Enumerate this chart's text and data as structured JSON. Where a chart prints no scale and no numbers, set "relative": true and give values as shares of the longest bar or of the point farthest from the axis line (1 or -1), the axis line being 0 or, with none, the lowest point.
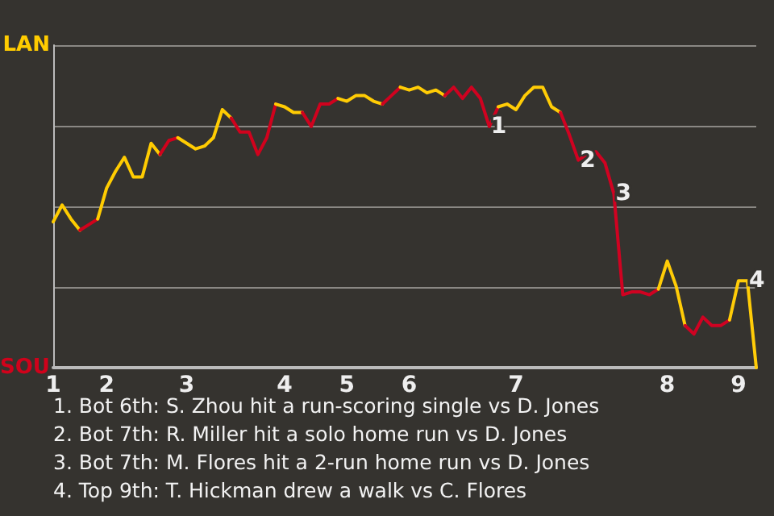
{
  "chart_data": {
    "type": "line",
    "relative": true,
    "categories": [
      "1",
      null,
      null,
      null,
      null,
      null,
      "2",
      null,
      null,
      null,
      null,
      null,
      null,
      null,
      null,
      "3",
      null,
      null,
      null,
      null,
      null,
      null,
      null,
      null,
      null,
      null,
      "4",
      null,
      null,
      null,
      null,
      null,
      null,
      "5",
      null,
      null,
      null,
      null,
      null,
      null,
      "6",
      null,
      null,
      null,
      null,
      null,
      null,
      null,
      null,
      null,
      null,
      null,
      "7",
      null,
      null,
      null,
      null,
      null,
      null,
      null,
      null,
      null,
      null,
      null,
      null,
      null,
      null,
      null,
      null,
      "8",
      null,
      null,
      null,
      null,
      null,
      null,
      null,
      "9",
      null,
      null
    ],
    "series": [
      {
        "name": "LAN",
        "color": "#ffcc00",
        "values": [
          0.52,
          0.58,
          0.53,
          0.49,
          null,
          null,
          null,
          null,
          null,
          null,
          null,
          null,
          null,
          null,
          null,
          null,
          null,
          null,
          null,
          null,
          null,
          null,
          null,
          null,
          null,
          null,
          null,
          null,
          null,
          null,
          null,
          null,
          null,
          null,
          null,
          null,
          null,
          null,
          null,
          null,
          null,
          null,
          null,
          null,
          null,
          null,
          null,
          null,
          null,
          null,
          null,
          null,
          null,
          null,
          null,
          null,
          null,
          null,
          null,
          null,
          null,
          null,
          null,
          null,
          null,
          null,
          null,
          null,
          null,
          null,
          null,
          null,
          null,
          null,
          null,
          null,
          null,
          null,
          null,
          null
        ]
      },
      {
        "name": "SOU",
        "color": "#d0021b",
        "values": [
          null,
          null,
          null,
          0.49,
          0.51,
          0.53,
          null,
          null,
          null,
          null,
          null,
          null,
          null,
          null,
          null,
          null,
          null,
          null,
          null,
          null,
          null,
          null,
          null,
          null,
          null,
          null,
          null,
          null,
          null,
          null,
          null,
          null,
          null,
          null,
          null,
          null,
          null,
          null,
          null,
          null,
          null,
          null,
          null,
          null,
          null,
          null,
          null,
          null,
          null,
          null,
          null,
          null,
          null,
          null,
          null,
          null,
          null,
          null,
          null,
          null,
          null,
          null,
          null,
          null,
          null,
          null,
          null,
          null,
          null,
          null,
          null,
          null,
          null,
          null,
          null,
          null,
          null,
          null,
          null,
          null
        ]
      },
      {
        "color": "#ffcc01",
        "values": [
          null,
          null,
          null,
          null,
          null,
          0.53,
          0.64,
          0.7,
          0.75,
          0.68,
          0.68,
          0.8,
          0.76,
          null,
          null,
          null,
          null,
          null,
          null,
          null,
          null,
          null,
          null,
          null,
          null,
          null,
          null,
          null,
          null,
          null,
          null,
          null,
          null,
          null,
          null,
          null,
          null,
          null,
          null,
          null,
          null,
          null,
          null,
          null,
          null,
          null,
          null,
          null,
          null,
          null,
          null,
          null,
          null,
          null,
          null,
          null,
          null,
          null,
          null,
          null,
          null,
          null,
          null,
          null,
          null,
          null,
          null,
          null,
          null,
          null,
          null,
          null,
          null,
          null,
          null,
          null,
          null,
          null,
          null,
          null
        ]
      },
      {
        "color": "#d0021c",
        "values": [
          null,
          null,
          null,
          null,
          null,
          null,
          null,
          null,
          null,
          null,
          null,
          null,
          0.76,
          0.81,
          0.82,
          null,
          null,
          null,
          null,
          null,
          null,
          null,
          null,
          null,
          null,
          null,
          null,
          null,
          null,
          null,
          null,
          null,
          null,
          null,
          null,
          null,
          null,
          null,
          null,
          null,
          null,
          null,
          null,
          null,
          null,
          null,
          null,
          null,
          null,
          null,
          null,
          null,
          null,
          null,
          null,
          null,
          null,
          null,
          null,
          null,
          null,
          null,
          null,
          null,
          null,
          null,
          null,
          null,
          null,
          null,
          null,
          null,
          null,
          null,
          null,
          null,
          null,
          null,
          null,
          null
        ]
      },
      {
        "color": "#ffcc02",
        "values": [
          null,
          null,
          null,
          null,
          null,
          null,
          null,
          null,
          null,
          null,
          null,
          null,
          null,
          null,
          0.82,
          0.8,
          0.78,
          0.79,
          0.82,
          0.92,
          0.89,
          null,
          null,
          null,
          null,
          null,
          null,
          null,
          null,
          null,
          null,
          null,
          null,
          null,
          null,
          null,
          null,
          null,
          null,
          null,
          null,
          null,
          null,
          null,
          null,
          null,
          null,
          null,
          null,
          null,
          null,
          null,
          null,
          null,
          null,
          null,
          null,
          null,
          null,
          null,
          null,
          null,
          null,
          null,
          null,
          null,
          null,
          null,
          null,
          null,
          null,
          null,
          null,
          null,
          null,
          null,
          null,
          null,
          null,
          null
        ]
      },
      {
        "color": "#d0021d",
        "values": [
          null,
          null,
          null,
          null,
          null,
          null,
          null,
          null,
          null,
          null,
          null,
          null,
          null,
          null,
          null,
          null,
          null,
          null,
          null,
          null,
          0.89,
          0.84,
          0.84,
          0.76,
          0.82,
          0.94,
          null,
          null,
          null,
          null,
          null,
          null,
          null,
          null,
          null,
          null,
          null,
          null,
          null,
          null,
          null,
          null,
          null,
          null,
          null,
          null,
          null,
          null,
          null,
          null,
          null,
          null,
          null,
          null,
          null,
          null,
          null,
          null,
          null,
          null,
          null,
          null,
          null,
          null,
          null,
          null,
          null,
          null,
          null,
          null,
          null,
          null,
          null,
          null,
          null,
          null,
          null,
          null,
          null,
          null
        ]
      },
      {
        "color": "#ffcc03",
        "values": [
          null,
          null,
          null,
          null,
          null,
          null,
          null,
          null,
          null,
          null,
          null,
          null,
          null,
          null,
          null,
          null,
          null,
          null,
          null,
          null,
          null,
          null,
          null,
          null,
          null,
          0.94,
          0.93,
          0.91,
          0.91,
          null,
          null,
          null,
          null,
          null,
          null,
          null,
          null,
          null,
          null,
          null,
          null,
          null,
          null,
          null,
          null,
          null,
          null,
          null,
          null,
          null,
          null,
          null,
          null,
          null,
          null,
          null,
          null,
          null,
          null,
          null,
          null,
          null,
          null,
          null,
          null,
          null,
          null,
          null,
          null,
          null,
          null,
          null,
          null,
          null,
          null,
          null,
          null,
          null,
          null,
          null
        ]
      },
      {
        "color": "#d0021e",
        "values": [
          null,
          null,
          null,
          null,
          null,
          null,
          null,
          null,
          null,
          null,
          null,
          null,
          null,
          null,
          null,
          null,
          null,
          null,
          null,
          null,
          null,
          null,
          null,
          null,
          null,
          null,
          null,
          null,
          0.91,
          0.86,
          0.94,
          0.94,
          0.96,
          null,
          null,
          null,
          null,
          null,
          null,
          null,
          null,
          null,
          null,
          null,
          null,
          null,
          null,
          null,
          null,
          null,
          null,
          null,
          null,
          null,
          null,
          null,
          null,
          null,
          null,
          null,
          null,
          null,
          null,
          null,
          null,
          null,
          null,
          null,
          null,
          null,
          null,
          null,
          null,
          null,
          null,
          null,
          null,
          null,
          null,
          null
        ]
      },
      {
        "color": "#ffcc04",
        "values": [
          null,
          null,
          null,
          null,
          null,
          null,
          null,
          null,
          null,
          null,
          null,
          null,
          null,
          null,
          null,
          null,
          null,
          null,
          null,
          null,
          null,
          null,
          null,
          null,
          null,
          null,
          null,
          null,
          null,
          null,
          null,
          null,
          0.96,
          0.95,
          0.97,
          0.97,
          0.95,
          0.94,
          null,
          null,
          null,
          null,
          null,
          null,
          null,
          null,
          null,
          null,
          null,
          null,
          null,
          null,
          null,
          null,
          null,
          null,
          null,
          null,
          null,
          null,
          null,
          null,
          null,
          null,
          null,
          null,
          null,
          null,
          null,
          null,
          null,
          null,
          null,
          null,
          null,
          null,
          null,
          null,
          null,
          null
        ]
      },
      {
        "color": "#d0021f",
        "values": [
          null,
          null,
          null,
          null,
          null,
          null,
          null,
          null,
          null,
          null,
          null,
          null,
          null,
          null,
          null,
          null,
          null,
          null,
          null,
          null,
          null,
          null,
          null,
          null,
          null,
          null,
          null,
          null,
          null,
          null,
          null,
          null,
          null,
          null,
          null,
          null,
          null,
          0.94,
          0.97,
          1,
          null,
          null,
          null,
          null,
          null,
          null,
          null,
          null,
          null,
          null,
          null,
          null,
          null,
          null,
          null,
          null,
          null,
          null,
          null,
          null,
          null,
          null,
          null,
          null,
          null,
          null,
          null,
          null,
          null,
          null,
          null,
          null,
          null,
          null,
          null,
          null,
          null,
          null,
          null,
          null
        ]
      },
      {
        "color": "#ffcc05",
        "values": [
          null,
          null,
          null,
          null,
          null,
          null,
          null,
          null,
          null,
          null,
          null,
          null,
          null,
          null,
          null,
          null,
          null,
          null,
          null,
          null,
          null,
          null,
          null,
          null,
          null,
          null,
          null,
          null,
          null,
          null,
          null,
          null,
          null,
          null,
          null,
          null,
          null,
          null,
          null,
          1,
          0.99,
          1,
          0.98,
          0.99,
          0.97,
          null,
          null,
          null,
          null,
          null,
          null,
          null,
          null,
          null,
          null,
          null,
          null,
          null,
          null,
          null,
          null,
          null,
          null,
          null,
          null,
          null,
          null,
          null,
          null,
          null,
          null,
          null,
          null,
          null,
          null,
          null,
          null,
          null,
          null,
          null
        ]
      },
      {
        "color": "#d00220",
        "values": [
          null,
          null,
          null,
          null,
          null,
          null,
          null,
          null,
          null,
          null,
          null,
          null,
          null,
          null,
          null,
          null,
          null,
          null,
          null,
          null,
          null,
          null,
          null,
          null,
          null,
          null,
          null,
          null,
          null,
          null,
          null,
          null,
          null,
          null,
          null,
          null,
          null,
          null,
          null,
          null,
          null,
          null,
          null,
          null,
          0.97,
          1,
          0.96,
          1,
          0.96,
          0.86,
          0.93,
          null,
          null,
          null,
          null,
          null,
          null,
          null,
          null,
          null,
          null,
          null,
          null,
          null,
          null,
          null,
          null,
          null,
          null,
          null,
          null,
          null,
          null,
          null,
          null,
          null,
          null,
          null,
          null,
          null
        ]
      },
      {
        "color": "#ffcc06",
        "values": [
          null,
          null,
          null,
          null,
          null,
          null,
          null,
          null,
          null,
          null,
          null,
          null,
          null,
          null,
          null,
          null,
          null,
          null,
          null,
          null,
          null,
          null,
          null,
          null,
          null,
          null,
          null,
          null,
          null,
          null,
          null,
          null,
          null,
          null,
          null,
          null,
          null,
          null,
          null,
          null,
          null,
          null,
          null,
          null,
          null,
          null,
          null,
          null,
          null,
          null,
          0.93,
          0.94,
          0.92,
          0.97,
          1,
          1,
          0.93,
          0.91,
          null,
          null,
          null,
          null,
          null,
          null,
          null,
          null,
          null,
          null,
          null,
          null,
          null,
          null,
          null,
          null,
          null,
          null,
          null,
          null,
          null,
          null
        ]
      },
      {
        "color": "#d00221",
        "values": [
          null,
          null,
          null,
          null,
          null,
          null,
          null,
          null,
          null,
          null,
          null,
          null,
          null,
          null,
          null,
          null,
          null,
          null,
          null,
          null,
          null,
          null,
          null,
          null,
          null,
          null,
          null,
          null,
          null,
          null,
          null,
          null,
          null,
          null,
          null,
          null,
          null,
          null,
          null,
          null,
          null,
          null,
          null,
          null,
          null,
          null,
          null,
          null,
          null,
          null,
          null,
          null,
          null,
          null,
          null,
          null,
          null,
          0.91,
          0.83,
          0.74,
          0.76,
          0.77,
          0.73,
          0.62,
          0.26,
          0.27,
          0.27,
          0.26,
          0.28,
          null,
          null,
          null,
          null,
          null,
          null,
          null,
          null,
          null,
          null,
          null
        ]
      },
      {
        "color": "#ffcc07",
        "values": [
          null,
          null,
          null,
          null,
          null,
          null,
          null,
          null,
          null,
          null,
          null,
          null,
          null,
          null,
          null,
          null,
          null,
          null,
          null,
          null,
          null,
          null,
          null,
          null,
          null,
          null,
          null,
          null,
          null,
          null,
          null,
          null,
          null,
          null,
          null,
          null,
          null,
          null,
          null,
          null,
          null,
          null,
          null,
          null,
          null,
          null,
          null,
          null,
          null,
          null,
          null,
          null,
          null,
          null,
          null,
          null,
          null,
          null,
          null,
          null,
          null,
          null,
          null,
          null,
          null,
          null,
          null,
          null,
          0.28,
          0.38,
          0.29,
          0.15,
          null,
          null,
          null,
          null,
          null,
          null,
          null,
          null
        ]
      },
      {
        "color": "#d00222",
        "values": [
          null,
          null,
          null,
          null,
          null,
          null,
          null,
          null,
          null,
          null,
          null,
          null,
          null,
          null,
          null,
          null,
          null,
          null,
          null,
          null,
          null,
          null,
          null,
          null,
          null,
          null,
          null,
          null,
          null,
          null,
          null,
          null,
          null,
          null,
          null,
          null,
          null,
          null,
          null,
          null,
          null,
          null,
          null,
          null,
          null,
          null,
          null,
          null,
          null,
          null,
          null,
          null,
          null,
          null,
          null,
          null,
          null,
          null,
          null,
          null,
          null,
          null,
          null,
          null,
          null,
          null,
          null,
          null,
          null,
          null,
          null,
          0.15,
          0.12,
          0.18,
          0.15,
          0.15,
          0.17,
          null,
          null,
          null
        ]
      },
      {
        "color": "#ffcc08",
        "values": [
          null,
          null,
          null,
          null,
          null,
          null,
          null,
          null,
          null,
          null,
          null,
          null,
          null,
          null,
          null,
          null,
          null,
          null,
          null,
          null,
          null,
          null,
          null,
          null,
          null,
          null,
          null,
          null,
          null,
          null,
          null,
          null,
          null,
          null,
          null,
          null,
          null,
          null,
          null,
          null,
          null,
          null,
          null,
          null,
          null,
          null,
          null,
          null,
          null,
          null,
          null,
          null,
          null,
          null,
          null,
          null,
          null,
          null,
          null,
          null,
          null,
          null,
          null,
          null,
          null,
          null,
          null,
          null,
          null,
          null,
          null,
          null,
          null,
          null,
          null,
          null,
          0.17,
          0.31,
          0.31,
          0
        ]
      }
    ],
    "grid": "y",
    "marker": "none",
    "annotations": [
      {
        "text": "1",
        "y": 0.86
      },
      {
        "text": "2",
        "y": 0.74
      },
      {
        "text": "3",
        "y": 0.62
      },
      {
        "text": "4",
        "y": 0.31
      },
      "1. Bot 6th: S. Zhou hit a run-scoring single vs D. Jones",
      "2. Bot 7th: R. Miller hit a solo home run vs D. Jones",
      "3. Bot 7th: M. Flores hit a 2-run home run vs D. Jones",
      "4. Top 9th: T. Hickman drew a walk vs C. Flores"
    ]
  }
}
